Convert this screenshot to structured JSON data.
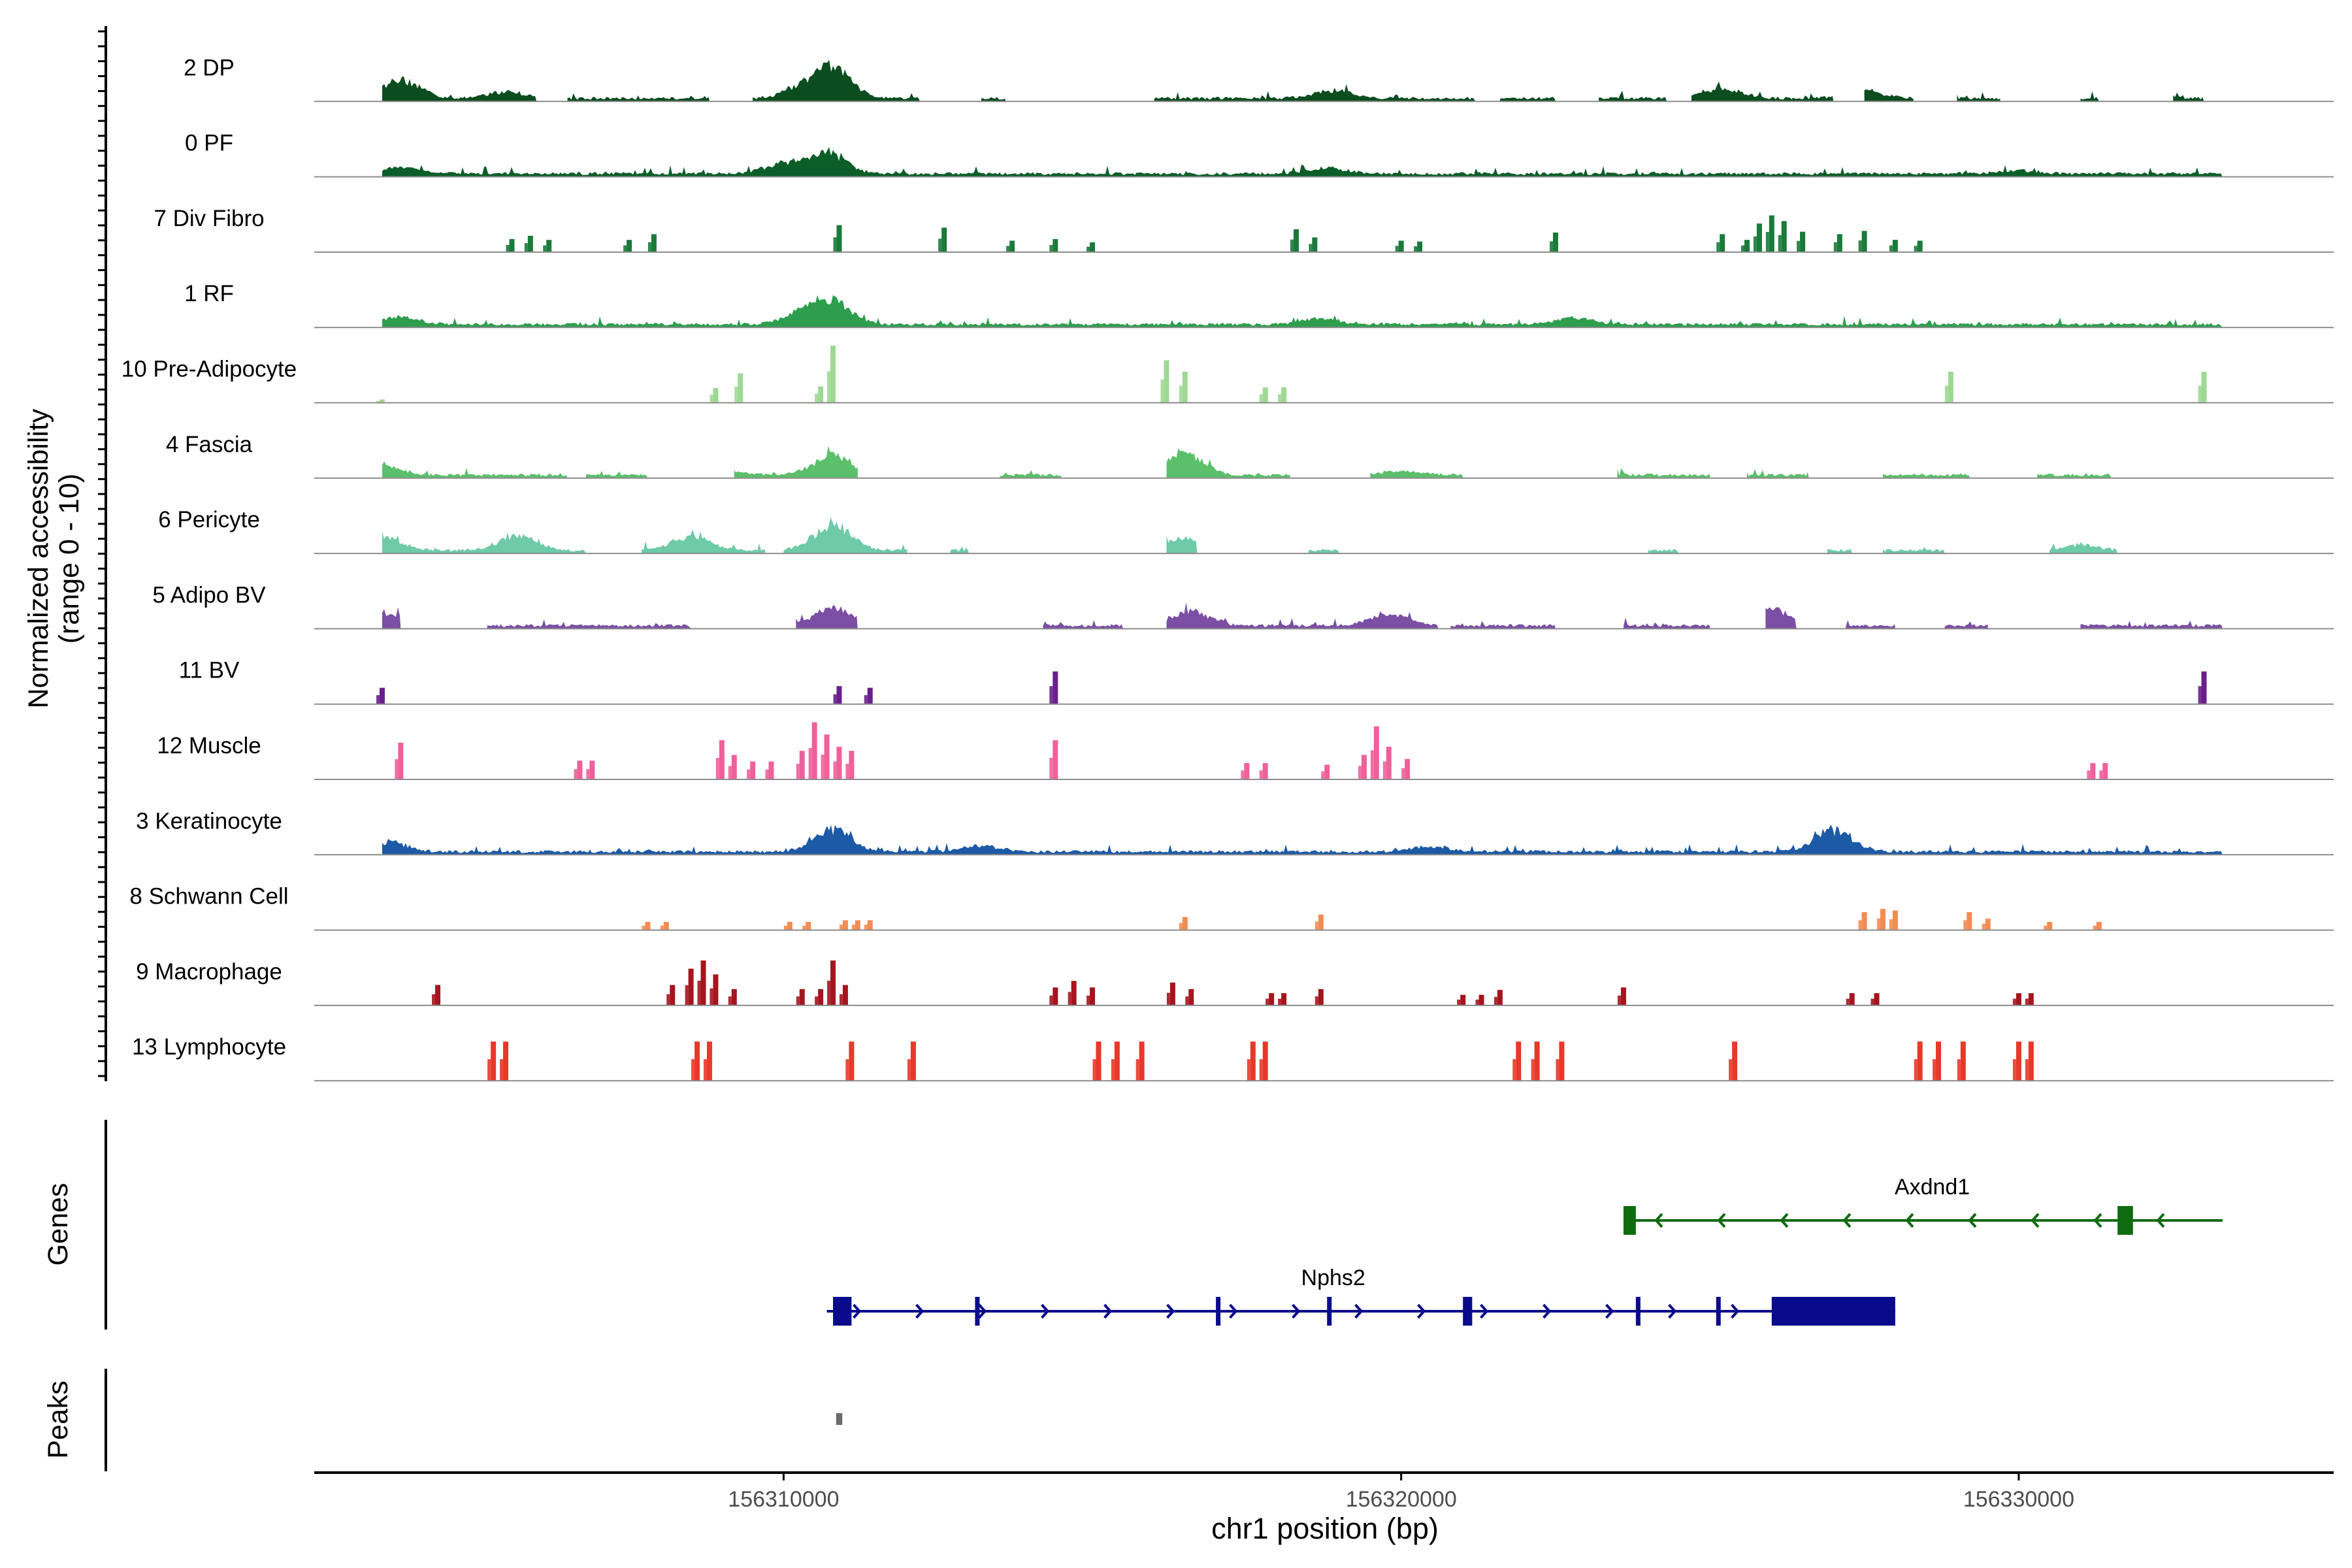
{
  "chart_data": {
    "type": "area",
    "genome": {
      "xlabel": "chr1 position (bp)",
      "xlim": [
        156302400,
        156335100
      ],
      "ticks": [
        156310000,
        156320000,
        156330000
      ],
      "tick_labels": [
        "156310000",
        "156320000",
        "156330000"
      ]
    },
    "coverage": {
      "ylabel_line1": "Normalized accessibility",
      "ylabel_line2": "(range 0 - 10)",
      "ylim": [
        0,
        10
      ],
      "tracks": [
        {
          "label": "2 DP",
          "color": "#0b4d1f",
          "style": "continuous",
          "peaks": [
            [
              156303800,
              2.4
            ],
            [
              156305500,
              0.8
            ],
            [
              156310800,
              3.5
            ],
            [
              156310300,
              1.2
            ],
            [
              156318900,
              1.0
            ],
            [
              156325200,
              1.3
            ],
            [
              156327500,
              0.9
            ],
            [
              156332000,
              0.9
            ]
          ],
          "islands": [
            [
              156303500,
              156306000
            ],
            [
              156306500,
              156308800
            ],
            [
              156309500,
              156312200
            ],
            [
              156313200,
              156313600
            ],
            [
              156316000,
              156321200
            ],
            [
              156321600,
              156322500
            ],
            [
              156323200,
              156324300
            ],
            [
              156324700,
              156327000
            ],
            [
              156327500,
              156328300
            ],
            [
              156329000,
              156329700
            ],
            [
              156331000,
              156331300
            ],
            [
              156332500,
              156333000
            ]
          ]
        },
        {
          "label": "0 PF",
          "color": "#0b5e28",
          "style": "continuous",
          "peaks": [
            [
              156303800,
              0.8
            ],
            [
              156310700,
              2.6
            ],
            [
              156310000,
              1.2
            ],
            [
              156318800,
              0.7
            ],
            [
              156330000,
              0.4
            ]
          ],
          "islands": [
            [
              156303500,
              156333300
            ]
          ]
        },
        {
          "label": "7 Div Fibro",
          "color": "#1a7a3a",
          "style": "spiky",
          "bars": [
            [
              156305600,
              1.6
            ],
            [
              156305900,
              2.0
            ],
            [
              156306200,
              1.5
            ],
            [
              156307500,
              1.5
            ],
            [
              156307900,
              2.2
            ],
            [
              156310900,
              3.3
            ],
            [
              156312600,
              3.0
            ],
            [
              156313700,
              1.4
            ],
            [
              156314400,
              1.6
            ],
            [
              156315000,
              1.2
            ],
            [
              156318300,
              2.8
            ],
            [
              156318600,
              1.8
            ],
            [
              156320000,
              1.4
            ],
            [
              156320300,
              1.3
            ],
            [
              156322500,
              2.4
            ],
            [
              156325200,
              2.2
            ],
            [
              156325600,
              1.5
            ],
            [
              156325800,
              3.5
            ],
            [
              156326000,
              4.5
            ],
            [
              156326200,
              3.8
            ],
            [
              156326500,
              2.5
            ],
            [
              156327100,
              2.2
            ],
            [
              156327500,
              2.6
            ],
            [
              156328000,
              1.5
            ],
            [
              156328400,
              1.4
            ]
          ]
        },
        {
          "label": "1 RF",
          "color": "#2e9e4e",
          "style": "continuous",
          "peaks": [
            [
              156303800,
              0.8
            ],
            [
              156310800,
              2.7
            ],
            [
              156310300,
              1.4
            ],
            [
              156318700,
              0.7
            ],
            [
              156322800,
              0.8
            ]
          ],
          "islands": [
            [
              156303500,
              156333300
            ]
          ]
        },
        {
          "label": "10 Pre-Adipocyte",
          "color": "#9ed994",
          "style": "spiky",
          "bars": [
            [
              156303500,
              0.4
            ],
            [
              156308900,
              1.8
            ],
            [
              156309300,
              3.6
            ],
            [
              156310600,
              2.0
            ],
            [
              156310800,
              7.0
            ],
            [
              156316200,
              5.2
            ],
            [
              156316500,
              3.8
            ],
            [
              156317800,
              1.9
            ],
            [
              156318100,
              1.9
            ],
            [
              156328900,
              3.8
            ],
            [
              156333000,
              3.8
            ]
          ]
        },
        {
          "label": "4 Fascia",
          "color": "#5cbf6b",
          "style": "continuous",
          "peaks": [
            [
              156303500,
              1.1
            ],
            [
              156310800,
              2.4
            ],
            [
              156316500,
              2.5
            ],
            [
              156309000,
              0.6
            ],
            [
              156320000,
              0.5
            ]
          ],
          "islands": [
            [
              156303500,
              156306500
            ],
            [
              156306800,
              156307800
            ],
            [
              156309200,
              156311200
            ],
            [
              156313500,
              156314500
            ],
            [
              156316200,
              156318200
            ],
            [
              156319500,
              156321000
            ],
            [
              156323500,
              156325000
            ],
            [
              156325600,
              156326600
            ],
            [
              156327800,
              156329200
            ],
            [
              156330300,
              156331500
            ]
          ]
        },
        {
          "label": "6 Pericyte",
          "color": "#6ecaa8",
          "style": "continuous",
          "peaks": [
            [
              156303500,
              1.6
            ],
            [
              156305700,
              1.8
            ],
            [
              156308500,
              1.7
            ],
            [
              156310800,
              3.2
            ],
            [
              156316500,
              1.5
            ],
            [
              156331000,
              0.6
            ]
          ],
          "islands": [
            [
              156303500,
              156306800
            ],
            [
              156307700,
              156309700
            ],
            [
              156310000,
              156312000
            ],
            [
              156312700,
              156313000
            ],
            [
              156316200,
              156316700
            ],
            [
              156318500,
              156319000
            ],
            [
              156324000,
              156324500
            ],
            [
              156326900,
              156327300
            ],
            [
              156327800,
              156328800
            ],
            [
              156330500,
              156331600
            ]
          ]
        },
        {
          "label": "5 Adipo BV",
          "color": "#7b4fa4",
          "style": "continuous",
          "peaks": [
            [
              156303500,
              1.7
            ],
            [
              156310800,
              2.2
            ],
            [
              156316600,
              1.8
            ],
            [
              156319800,
              1.6
            ],
            [
              156326000,
              2.0
            ],
            [
              156330200,
              0.9
            ]
          ],
          "islands": [
            [
              156303500,
              156303800
            ],
            [
              156305200,
              156308500
            ],
            [
              156310200,
              156311200
            ],
            [
              156314200,
              156315500
            ],
            [
              156316200,
              156320600
            ],
            [
              156320800,
              156322500
            ],
            [
              156323600,
              156325000
            ],
            [
              156325900,
              156326400
            ],
            [
              156327200,
              156328000
            ],
            [
              156328800,
              156329500
            ],
            [
              156331000,
              156333300
            ]
          ]
        },
        {
          "label": "11 BV",
          "color": "#6a1f8c",
          "style": "spiky",
          "bars": [
            [
              156303500,
              2.0
            ],
            [
              156310900,
              2.2
            ],
            [
              156311400,
              2.0
            ],
            [
              156314400,
              4.0
            ],
            [
              156333000,
              4.0
            ]
          ]
        },
        {
          "label": "12 Muscle",
          "color": "#f0609a",
          "style": "spiky",
          "bars": [
            [
              156303800,
              4.5
            ],
            [
              156306700,
              2.3
            ],
            [
              156306900,
              2.3
            ],
            [
              156309000,
              4.8
            ],
            [
              156309200,
              3.0
            ],
            [
              156309500,
              2.2
            ],
            [
              156309800,
              2.2
            ],
            [
              156310300,
              3.5
            ],
            [
              156310500,
              7.0
            ],
            [
              156310700,
              5.5
            ],
            [
              156310900,
              4.0
            ],
            [
              156311100,
              3.5
            ],
            [
              156314400,
              4.8
            ],
            [
              156317500,
              2.0
            ],
            [
              156317800,
              2.0
            ],
            [
              156318800,
              1.8
            ],
            [
              156319400,
              3.0
            ],
            [
              156319600,
              6.5
            ],
            [
              156319800,
              4.0
            ],
            [
              156320100,
              2.5
            ],
            [
              156331200,
              2.0
            ],
            [
              156331400,
              2.0
            ]
          ]
        },
        {
          "label": "3 Keratinocyte",
          "color": "#1c5aa6",
          "style": "continuous",
          "peaks": [
            [
              156303600,
              1.2
            ],
            [
              156310800,
              2.6
            ],
            [
              156313200,
              0.7
            ],
            [
              156327000,
              2.6
            ],
            [
              156320500,
              0.6
            ]
          ],
          "islands": [
            [
              156303500,
              156333300
            ]
          ]
        },
        {
          "label": "8 Schwann Cell",
          "color": "#f28c52",
          "style": "spiky",
          "bars": [
            [
              156307800,
              1.0
            ],
            [
              156308100,
              1.0
            ],
            [
              156310100,
              1.0
            ],
            [
              156310400,
              1.0
            ],
            [
              156311000,
              1.2
            ],
            [
              156311200,
              1.2
            ],
            [
              156311400,
              1.2
            ],
            [
              156316500,
              1.6
            ],
            [
              156318700,
              1.9
            ],
            [
              156327500,
              2.2
            ],
            [
              156327800,
              2.6
            ],
            [
              156328000,
              2.4
            ],
            [
              156329200,
              2.2
            ],
            [
              156329500,
              1.4
            ],
            [
              156330500,
              1.0
            ],
            [
              156331300,
              1.0
            ]
          ]
        },
        {
          "label": "9 Macrophage",
          "color": "#a5151e",
          "style": "spiky",
          "bars": [
            [
              156304400,
              2.5
            ],
            [
              156308200,
              2.5
            ],
            [
              156308500,
              4.5
            ],
            [
              156308700,
              5.5
            ],
            [
              156308900,
              3.8
            ],
            [
              156309200,
              2.0
            ],
            [
              156310300,
              2.0
            ],
            [
              156310600,
              2.0
            ],
            [
              156310800,
              5.5
            ],
            [
              156311000,
              2.5
            ],
            [
              156314400,
              2.2
            ],
            [
              156314700,
              3.0
            ],
            [
              156315000,
              2.2
            ],
            [
              156316300,
              2.8
            ],
            [
              156316600,
              2.0
            ],
            [
              156317900,
              1.5
            ],
            [
              156318100,
              1.5
            ],
            [
              156318700,
              2.0
            ],
            [
              156321000,
              1.3
            ],
            [
              156321300,
              1.3
            ],
            [
              156321600,
              1.9
            ],
            [
              156323600,
              2.2
            ],
            [
              156327300,
              1.5
            ],
            [
              156327700,
              1.5
            ],
            [
              156330000,
              1.5
            ],
            [
              156330200,
              1.5
            ]
          ]
        },
        {
          "label": "13 Lymphocyte",
          "color": "#e8382a",
          "style": "spiky",
          "bars": [
            [
              156305300,
              4.8
            ],
            [
              156305500,
              4.8
            ],
            [
              156308600,
              4.8
            ],
            [
              156308800,
              4.8
            ],
            [
              156311100,
              4.8
            ],
            [
              156312100,
              4.8
            ],
            [
              156315100,
              4.8
            ],
            [
              156315400,
              4.8
            ],
            [
              156315800,
              4.8
            ],
            [
              156317600,
              4.8
            ],
            [
              156317800,
              4.8
            ],
            [
              156321900,
              4.8
            ],
            [
              156322200,
              4.8
            ],
            [
              156322600,
              4.8
            ],
            [
              156325400,
              4.8
            ],
            [
              156328400,
              4.8
            ],
            [
              156328700,
              4.8
            ],
            [
              156329100,
              4.8
            ],
            [
              156330000,
              4.8
            ],
            [
              156330200,
              4.8
            ]
          ]
        }
      ]
    },
    "genes": {
      "panel_label": "Genes",
      "items": [
        {
          "name": "Axdnd1",
          "color": "#0f6b0f",
          "start": 156323600,
          "end": 156333300,
          "strand": "-",
          "exons": [
            [
              156323600,
              156323800
            ],
            [
              156331600,
              156331850
            ]
          ],
          "row": 0
        },
        {
          "name": "Nphs2",
          "color": "#0a0a8c",
          "start": 156310700,
          "end": 156328000,
          "strand": "+",
          "exons": [
            [
              156310800,
              156311100
            ],
            [
              156313100,
              156313150
            ],
            [
              156317000,
              156317050
            ],
            [
              156318800,
              156318850
            ],
            [
              156321000,
              156321150
            ],
            [
              156323800,
              156323850
            ],
            [
              156325100,
              156325150
            ],
            [
              156326000,
              156328000
            ]
          ],
          "row": 1
        }
      ]
    },
    "peaks": {
      "panel_label": "Peaks",
      "regions": [
        [
          156310850,
          156310950
        ]
      ],
      "color": "#6b6b6b"
    }
  }
}
